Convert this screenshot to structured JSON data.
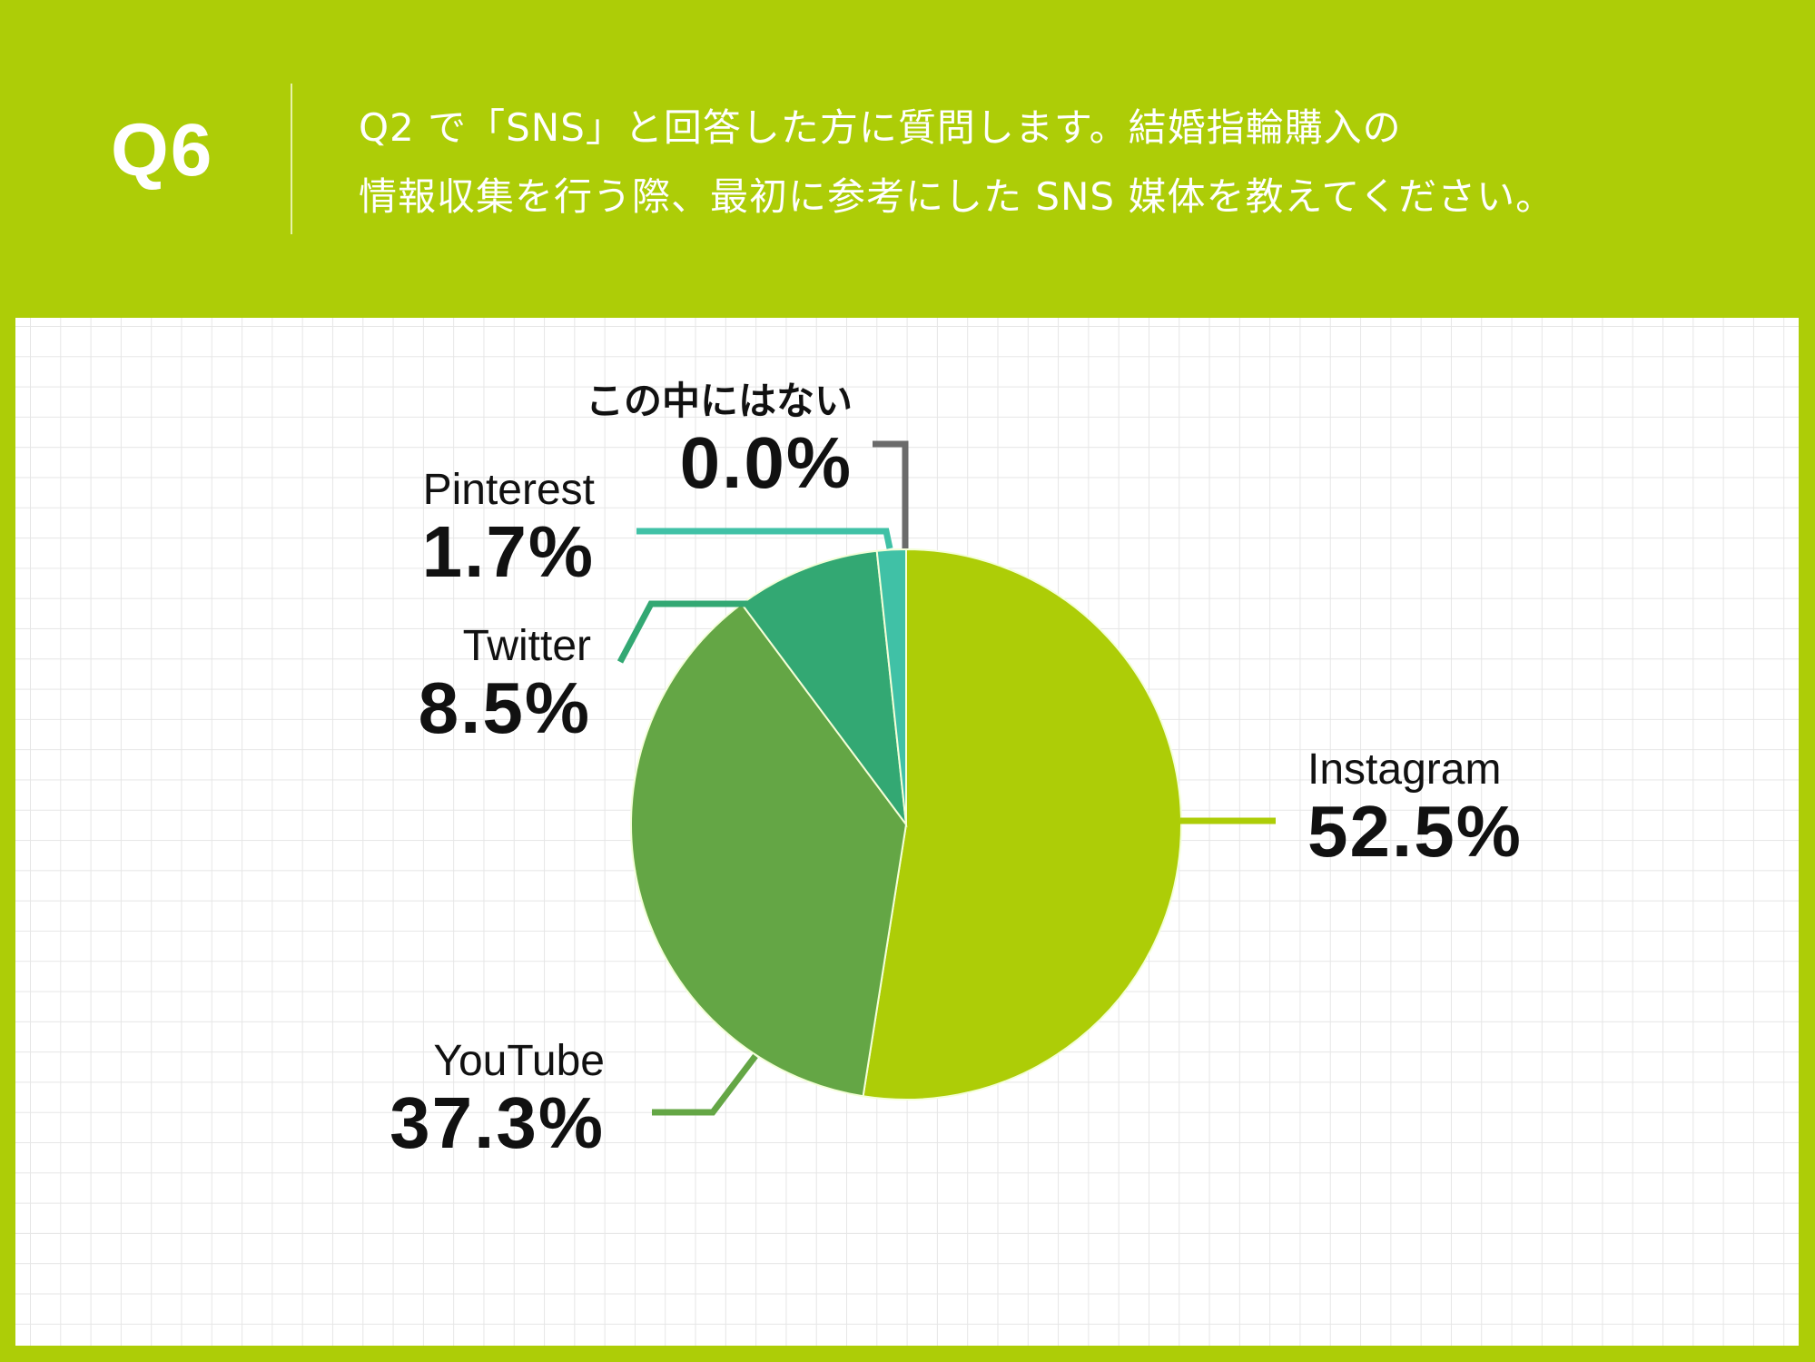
{
  "header": {
    "question_number": "Q6",
    "question_line1": "Q2 で「SNS」と回答した方に質問します。結婚指輪購入の",
    "question_line2": "情報収集を行う際、最初に参考にした SNS 媒体を教えてください。"
  },
  "colors": {
    "background": "#adcd07",
    "panel": "#ffffff",
    "grid": "#e6e6e6",
    "text": "#111111"
  },
  "chart_data": {
    "type": "pie",
    "title": "Q2 で「SNS」と回答した方に質問します。結婚指輪購入の情報収集を行う際、最初に参考にした SNS 媒体を教えてください。",
    "start_angle": "12 o'clock, clockwise",
    "categories": [
      "Instagram",
      "YouTube",
      "Twitter",
      "Pinterest",
      "この中にはない"
    ],
    "values": [
      52.5,
      37.3,
      8.5,
      1.7,
      0.0
    ],
    "unit": "%",
    "slice_colors": [
      "#adcd07",
      "#64a645",
      "#33a873",
      "#40c1a6",
      "#6b6b6b"
    ],
    "labels": {
      "instagram": {
        "name": "Instagram",
        "pct": "52.5%"
      },
      "youtube": {
        "name": "YouTube",
        "pct": "37.3%"
      },
      "twitter": {
        "name": "Twitter",
        "pct": "8.5%"
      },
      "pinterest": {
        "name": "Pinterest",
        "pct": "1.7%"
      },
      "none": {
        "name": "この中にはない",
        "pct": "0.0%"
      }
    },
    "legend": "none (direct labels with leader lines)",
    "grid": true
  }
}
